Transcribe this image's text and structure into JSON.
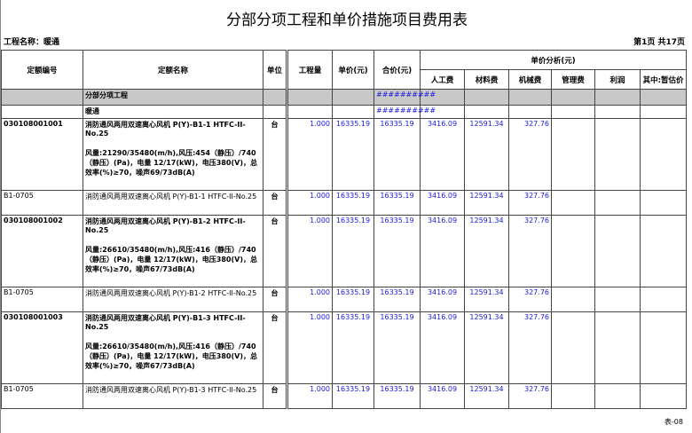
{
  "title": "分部分项工程和单价措施项目费用表",
  "project_label": "工程名称：暖通",
  "page_info": "第1页  共17页",
  "headers": {
    "code": "定额编号",
    "name": "定额名称",
    "unit": "单位",
    "qty": "工程量",
    "price": "单价(元)",
    "total": "合价(元)",
    "analysis": "单价分析(元)",
    "labor": "人工费",
    "material": "材料费",
    "machine": "机械费",
    "mgmt": "管理费",
    "profit": "利润",
    "provisional": "其中:暂估价"
  },
  "section": {
    "name": "分部分项工程",
    "total": "##########"
  },
  "subsection": {
    "name": "暖通",
    "total": "##########"
  },
  "rows": [
    {
      "code": "030108001001",
      "name": "消防通风两用双速离心风机 P(Y)-B1-1 HTFC-II-No.25",
      "desc": "风量:21290/35480(m/h),风压:454（静压）/740（静压）(Pa)，电量 12/17(kW)，电压380(V)，总效率(%)≥70，噪声69/73dB(A)",
      "unit": "台",
      "qty": "1.000",
      "price": "16335.19",
      "total": "16335.19",
      "labor": "3416.09",
      "material": "12591.34",
      "machine": "327.76",
      "bold": true
    },
    {
      "code": "B1-0705",
      "name": "消防通风两用双速离心风机 P(Y)-B1-1 HTFC-II-No.25",
      "desc": "",
      "unit": "台",
      "qty": "1.000",
      "price": "16335.19",
      "total": "16335.19",
      "labor": "3416.09",
      "material": "12591.34",
      "machine": "327.76",
      "bold": false
    },
    {
      "code": "030108001002",
      "name": "消防通风两用双速离心风机 P(Y)-B1-2 HTFC-II-No.25",
      "desc": "风量:26610/35480(m/h),风压:416（静压）/740（静压）(Pa)，电量 12/17(kW)，电压380(V)，总效率(%)≥70，噪声67/73dB(A)",
      "unit": "台",
      "qty": "1.000",
      "price": "16335.19",
      "total": "16335.19",
      "labor": "3416.09",
      "material": "12591.34",
      "machine": "327.76",
      "bold": true
    },
    {
      "code": "B1-0705",
      "name": "消防通风两用双速离心风机 P(Y)-B1-2 HTFC-II-No.25",
      "desc": "",
      "unit": "台",
      "qty": "1.000",
      "price": "16335.19",
      "total": "16335.19",
      "labor": "3416.09",
      "material": "12591.34",
      "machine": "327.76",
      "bold": false
    },
    {
      "code": "030108001003",
      "name": "消防通风两用双速离心风机 P(Y)-B1-3 HTFC-II-No.25",
      "desc": "风量:26610/35480(m/h),风压:416（静压）/740（静压）(Pa)，电量 12/17(kW)，电压380(V)，总效率(%)≥70，噪声67/73dB(A)",
      "unit": "台",
      "qty": "1.000",
      "price": "16335.19",
      "total": "16335.19",
      "labor": "3416.09",
      "material": "12591.34",
      "machine": "327.76",
      "bold": true
    },
    {
      "code": "B1-0705",
      "name": "消防通风两用双速离心风机 P(Y)-B1-3 HTFC-II-No.25",
      "desc": "",
      "unit": "台",
      "qty": "1.000",
      "price": "16335.19",
      "total": "16335.19",
      "labor": "3416.09",
      "material": "12591.34",
      "machine": "327.76",
      "bold": false
    }
  ],
  "footer": "表-08"
}
